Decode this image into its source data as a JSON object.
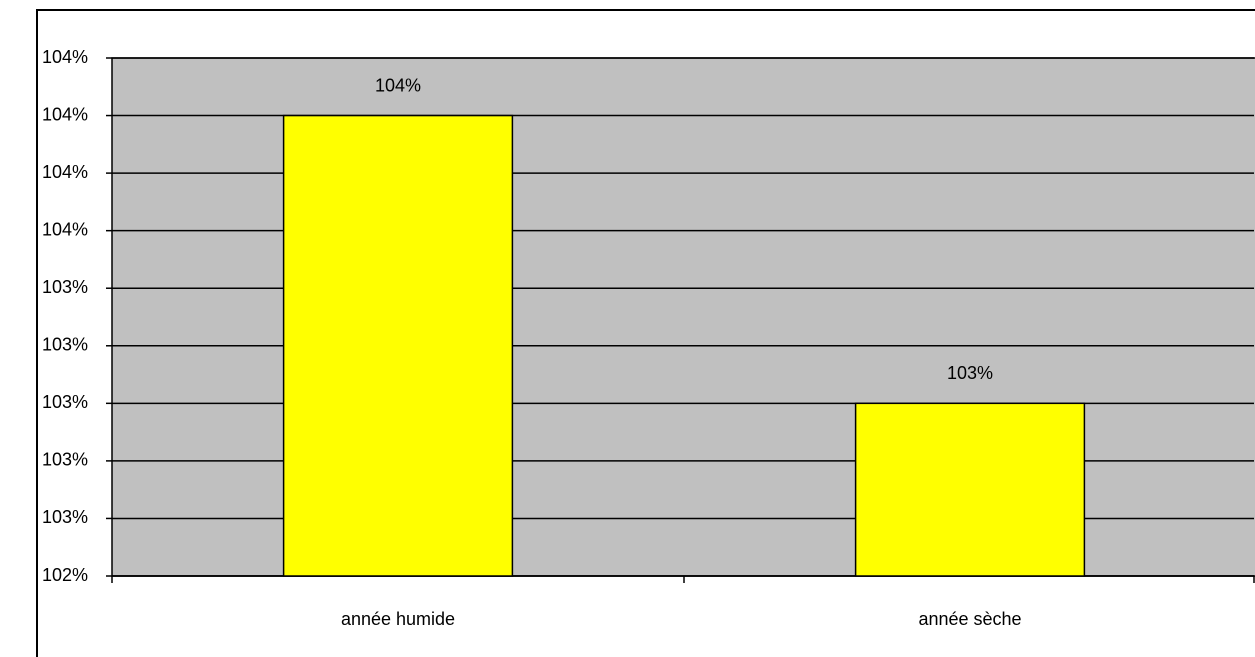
{
  "chart_data": {
    "type": "bar",
    "categories": [
      "année humide",
      "année sèche"
    ],
    "values": [
      104.0,
      103.0
    ],
    "value_labels": [
      "104%",
      "103%"
    ],
    "color": "#ffff00",
    "ylim": [
      102.4,
      104.2
    ],
    "yticks": [
      {
        "value": 102.4,
        "label": "102%"
      },
      {
        "value": 102.6,
        "label": "103%"
      },
      {
        "value": 102.8,
        "label": "103%"
      },
      {
        "value": 103.0,
        "label": "103%"
      },
      {
        "value": 103.2,
        "label": "103%"
      },
      {
        "value": 103.4,
        "label": "103%"
      },
      {
        "value": 103.6,
        "label": "104%"
      },
      {
        "value": 103.8,
        "label": "104%"
      },
      {
        "value": 104.0,
        "label": "104%"
      },
      {
        "value": 104.2,
        "label": "104%"
      }
    ],
    "grid": true
  }
}
